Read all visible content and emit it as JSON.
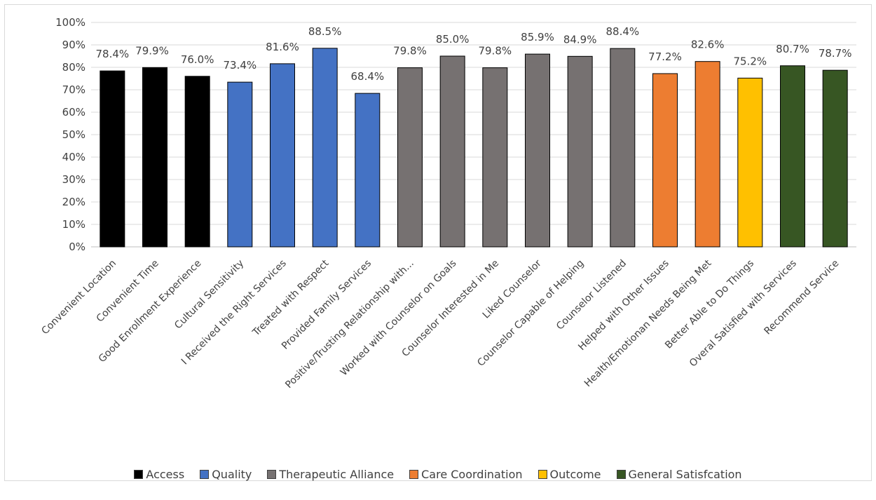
{
  "chart_data": {
    "type": "bar",
    "title": "",
    "xlabel": "",
    "ylabel": "",
    "ylim": [
      0,
      100
    ],
    "yticks": [
      "0%",
      "10%",
      "20%",
      "30%",
      "40%",
      "50%",
      "60%",
      "70%",
      "80%",
      "90%",
      "100%"
    ],
    "grid": true,
    "legend_position": "bottom",
    "groups": [
      {
        "name": "Access",
        "color": "#000000"
      },
      {
        "name": "Quality",
        "color": "#4472C4"
      },
      {
        "name": "Therapeutic Alliance",
        "color": "#767171"
      },
      {
        "name": "Care Coordination",
        "color": "#ED7D31"
      },
      {
        "name": "Outcome",
        "color": "#FFC000"
      },
      {
        "name": "General Satisfcation",
        "color": "#375623"
      }
    ],
    "categories": [
      "Convenient Location",
      "Convenient Time",
      "Good Enrollment Experience",
      "Cultural Sensitivity",
      "I Received the Right Services",
      "Treated with Respect",
      "Provided Family Services",
      "Positive/Trusting Relationship with...",
      "Worked with Counselor on Goals",
      "Counselor Interested in Me",
      "Liked Counselor",
      "Counselor Capable of Helping",
      "Counselor Listened",
      "Helped with Other Issues",
      "Health/Emotionan Needs Being Met",
      "Better Able to Do Things",
      "Overal Satisfied with Services",
      "Recommend Service"
    ],
    "values": [
      78.4,
      79.9,
      76.0,
      73.4,
      81.6,
      88.5,
      68.4,
      79.8,
      85.0,
      79.8,
      85.9,
      84.9,
      88.4,
      77.2,
      82.6,
      75.2,
      80.7,
      78.7
    ],
    "value_labels": [
      "78.4%",
      "79.9%",
      "76.0%",
      "73.4%",
      "81.6%",
      "88.5%",
      "68.4%",
      "79.8%",
      "85.0%",
      "79.8%",
      "85.9%",
      "84.9%",
      "88.4%",
      "77.2%",
      "82.6%",
      "75.2%",
      "80.7%",
      "78.7%"
    ],
    "bar_group": [
      0,
      0,
      0,
      1,
      1,
      1,
      1,
      2,
      2,
      2,
      2,
      2,
      2,
      3,
      3,
      4,
      5,
      5
    ]
  }
}
